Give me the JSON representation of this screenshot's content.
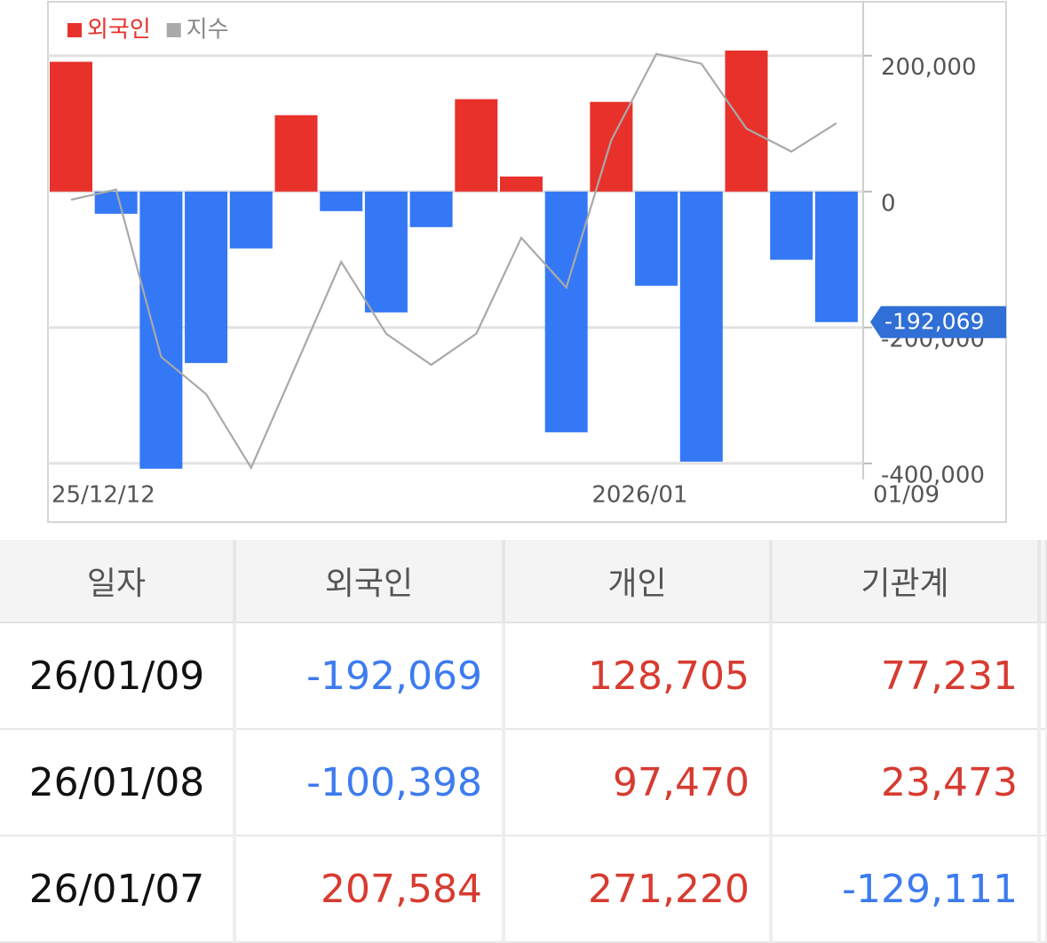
{
  "chart_data": {
    "type": "bar",
    "legend": "top-left",
    "categories": [
      "25/12/12",
      null,
      null,
      null,
      null,
      null,
      null,
      null,
      null,
      null,
      null,
      null,
      "2026/01",
      null,
      null,
      null,
      null,
      "01/09"
    ],
    "series": [
      {
        "name": "외국인",
        "color": "#e8312b",
        "negative_color": "#3478f6",
        "values": [
          191000,
          -32700,
          -407800,
          -252300,
          -83700,
          112400,
          -28800,
          -177800,
          -52300,
          136000,
          22200,
          -354200,
          132000,
          -138600,
          -397400,
          207584,
          -100398,
          -192069
        ],
        "value_labels": [
          null,
          null,
          null,
          null,
          null,
          null,
          null,
          null,
          null,
          null,
          null,
          null,
          null,
          null,
          null,
          null,
          null,
          "-192,069"
        ]
      },
      {
        "name": "지수",
        "type": "line",
        "color": "#a9a9a9",
        "values": [
          -12000,
          3000,
          -243100,
          -298000,
          -406500,
          -255000,
          -103300,
          -209200,
          -255000,
          -209200,
          -68000,
          -141200,
          75800,
          202600,
          188200,
          92800,
          58800,
          100700
        ]
      }
    ],
    "ylim": [
      -408000,
      278000
    ],
    "yticks": [
      {
        "value": 200000,
        "label": "200,000"
      },
      0,
      {
        "value": -200000,
        "label": "-200,000"
      },
      {
        "value": -400000,
        "label": "-400,000"
      }
    ],
    "grid": true
  },
  "table": {
    "header": [
      "일자",
      "외국인",
      "개인",
      "기관계"
    ],
    "rows": [
      [
        "26/01/09",
        "-192,069",
        "128,705",
        "77,231"
      ],
      [
        "26/01/08",
        "-100,398",
        "97,470",
        "23,473"
      ],
      [
        "26/01/07",
        "207,584",
        "271,220",
        "-129,111"
      ]
    ]
  }
}
